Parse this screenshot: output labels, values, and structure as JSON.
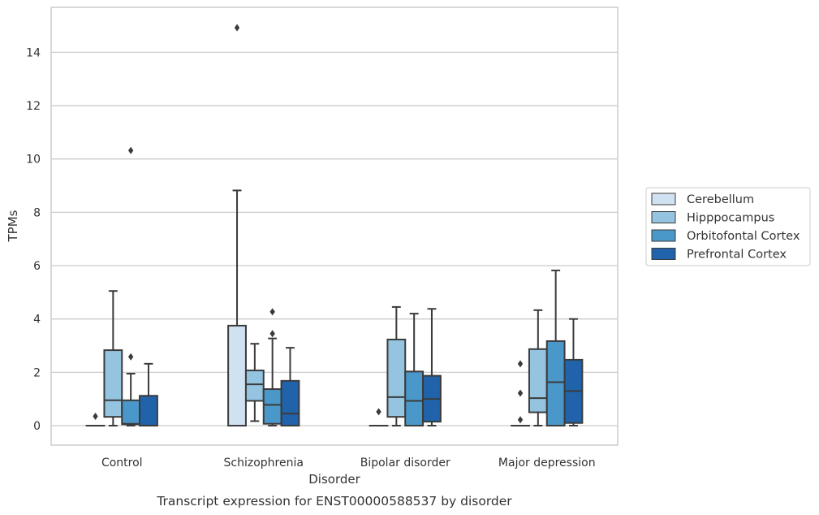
{
  "chart_data": {
    "type": "box",
    "xlabel": "Disorder",
    "ylabel": "TPMs",
    "caption": "Transcript expression for ENST00000588537 by disorder",
    "categories": [
      "Control",
      "Schizophrenia",
      "Bipolar disorder",
      "Major depression"
    ],
    "ylim": [
      -0.7,
      15.7
    ],
    "yticks": [
      0,
      2,
      4,
      6,
      8,
      10,
      12,
      14
    ],
    "grid": "horizontal",
    "legend_position": "right",
    "series": [
      {
        "name": "Cerebellum",
        "color": "#d0e1f2",
        "boxes": [
          {
            "q1": 0,
            "median": 0,
            "q3": 0,
            "whisker_low": 0,
            "whisker_high": 0,
            "outliers": [
              0.35
            ]
          },
          {
            "q1": 0,
            "median": 0,
            "q3": 3.75,
            "whisker_low": 0,
            "whisker_high": 8.82,
            "outliers": [
              14.92
            ]
          },
          {
            "q1": 0,
            "median": 0,
            "q3": 0,
            "whisker_low": 0,
            "whisker_high": 0,
            "outliers": [
              0.52
            ]
          },
          {
            "q1": 0,
            "median": 0,
            "q3": 0,
            "whisker_low": 0,
            "whisker_high": 0,
            "outliers": [
              0.22,
              1.22,
              2.32
            ]
          }
        ]
      },
      {
        "name": "Hipppocampus",
        "color": "#94c4df",
        "boxes": [
          {
            "q1": 0.33,
            "median": 0.95,
            "q3": 2.83,
            "whisker_low": 0,
            "whisker_high": 5.05,
            "outliers": []
          },
          {
            "q1": 0.93,
            "median": 1.55,
            "q3": 2.07,
            "whisker_low": 0.17,
            "whisker_high": 3.07,
            "outliers": []
          },
          {
            "q1": 0.33,
            "median": 1.07,
            "q3": 3.23,
            "whisker_low": 0,
            "whisker_high": 4.45,
            "outliers": []
          },
          {
            "q1": 0.5,
            "median": 1.03,
            "q3": 2.87,
            "whisker_low": 0,
            "whisker_high": 4.33,
            "outliers": []
          }
        ]
      },
      {
        "name": "Orbitofontal Cortex",
        "color": "#4a98c9",
        "boxes": [
          {
            "q1": 0.05,
            "median": 0.07,
            "q3": 0.95,
            "whisker_low": 0,
            "whisker_high": 1.95,
            "outliers": [
              2.58,
              10.32
            ]
          },
          {
            "q1": 0.07,
            "median": 0.78,
            "q3": 1.37,
            "whisker_low": 0,
            "whisker_high": 3.27,
            "outliers": [
              3.45,
              4.27
            ]
          },
          {
            "q1": 0,
            "median": 0.93,
            "q3": 2.03,
            "whisker_low": 0,
            "whisker_high": 4.2,
            "outliers": []
          },
          {
            "q1": 0,
            "median": 1.63,
            "q3": 3.17,
            "whisker_low": 0,
            "whisker_high": 5.82,
            "outliers": []
          }
        ]
      },
      {
        "name": "Prefrontal Cortex",
        "color": "#2163aa",
        "boxes": [
          {
            "q1": 0,
            "median": 0,
            "q3": 1.12,
            "whisker_low": 0,
            "whisker_high": 2.32,
            "outliers": []
          },
          {
            "q1": 0,
            "median": 0.45,
            "q3": 1.68,
            "whisker_low": 0,
            "whisker_high": 2.92,
            "outliers": []
          },
          {
            "q1": 0.15,
            "median": 1.0,
            "q3": 1.87,
            "whisker_low": 0,
            "whisker_high": 4.38,
            "outliers": []
          },
          {
            "q1": 0.1,
            "median": 1.3,
            "q3": 2.47,
            "whisker_low": 0,
            "whisker_high": 4.0,
            "outliers": []
          }
        ]
      }
    ]
  }
}
